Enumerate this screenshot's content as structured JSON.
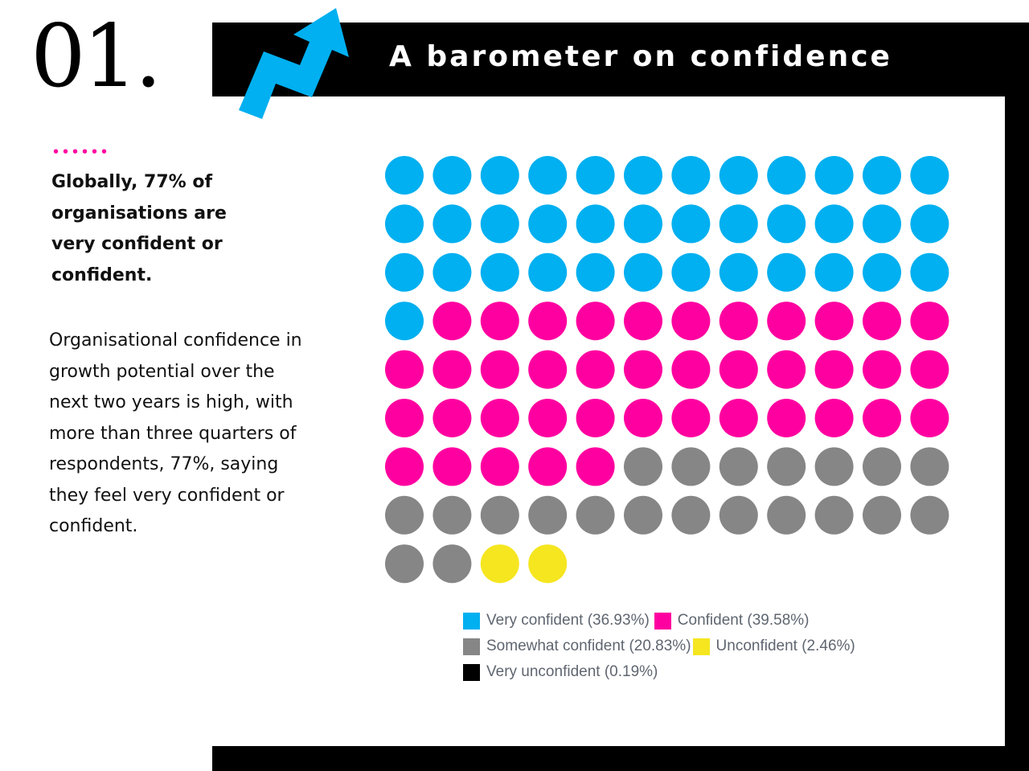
{
  "header": {
    "number": "01.",
    "title": "A barometer on confidence",
    "dots": "••••••"
  },
  "lead_text": "Globally, 77% of organisations are very confident or confident.",
  "body_text": "Organisational confidence in growth potential over the next two years is high, with more than three quarters of respondents, 77%, saying they feel very confident or confident.",
  "colors": {
    "accent_blue": "#00b0f0",
    "accent_pink": "#ff00a0"
  },
  "chart_data": {
    "type": "waffle",
    "title": "A barometer on confidence",
    "columns": 12,
    "total_dots": 100,
    "categories": [
      "Very confident",
      "Confident",
      "Somewhat confident",
      "Unconfident",
      "Very unconfident"
    ],
    "percentages": [
      36.93,
      39.58,
      20.83,
      2.46,
      0.19
    ],
    "dot_counts": [
      37,
      40,
      21,
      2,
      0
    ],
    "colors": [
      "#00b0f0",
      "#ff00a0",
      "#868686",
      "#f5e620",
      "#000000"
    ],
    "legend": [
      {
        "label": "Very confident (36.93%)",
        "color": "#00b0f0"
      },
      {
        "label": "Confident (39.58%)",
        "color": "#ff00a0"
      },
      {
        "label": "Somewhat confident (20.83%)",
        "color": "#868686"
      },
      {
        "label": "Unconfident (2.46%)",
        "color": "#f5e620"
      },
      {
        "label": "Very unconfident (0.19%)",
        "color": "#000000"
      }
    ],
    "legend_position": "bottom"
  }
}
